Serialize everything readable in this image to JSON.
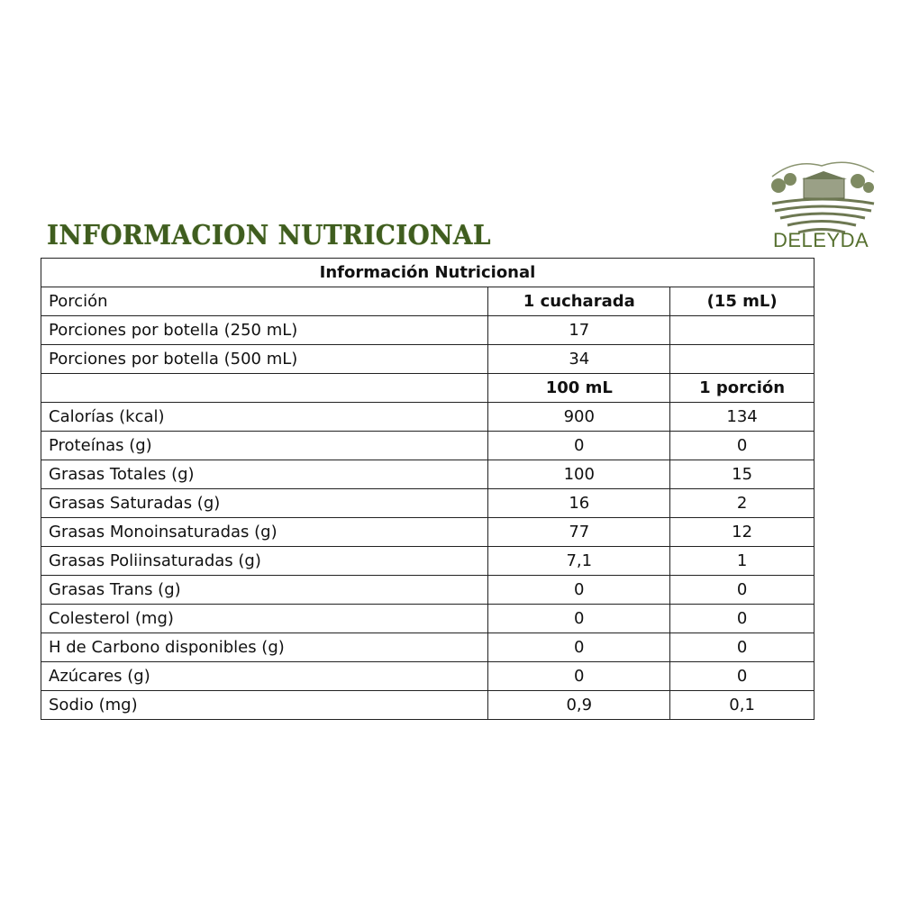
{
  "heading": "INFORMACION NUTRICIONAL",
  "brand": {
    "name": "DELEYDA",
    "color": "#56702f"
  },
  "colors": {
    "title": "#3f5d1f"
  },
  "table": {
    "caption": "Información Nutricional",
    "serving": {
      "label": "Porción",
      "amount": "1 cucharada",
      "volume": "(15 mL)"
    },
    "servings_per_bottle": [
      {
        "label": "Porciones por botella (250 mL)",
        "value": "17"
      },
      {
        "label": "Porciones por botella (500 mL)",
        "value": "34"
      }
    ],
    "columns": [
      "100 mL",
      "1 porción"
    ],
    "rows": [
      {
        "label": "Calorías (kcal)",
        "per100": "900",
        "perServing": "134"
      },
      {
        "label": "Proteínas (g)",
        "per100": "0",
        "perServing": "0"
      },
      {
        "label": "Grasas Totales (g)",
        "per100": "100",
        "perServing": "15"
      },
      {
        "label": "Grasas Saturadas (g)",
        "per100": "16",
        "perServing": "2"
      },
      {
        "label": "Grasas Monoinsaturadas (g)",
        "per100": "77",
        "perServing": "12"
      },
      {
        "label": "Grasas Poliinsaturadas (g)",
        "per100": "7,1",
        "perServing": "1"
      },
      {
        "label": "Grasas Trans (g)",
        "per100": "0",
        "perServing": "0"
      },
      {
        "label": "Colesterol (mg)",
        "per100": "0",
        "perServing": "0"
      },
      {
        "label": "H de Carbono disponibles (g)",
        "per100": "0",
        "perServing": "0"
      },
      {
        "label": "Azúcares (g)",
        "per100": "0",
        "perServing": "0"
      },
      {
        "label": "Sodio (mg)",
        "per100": "0,9",
        "perServing": "0,1"
      }
    ]
  }
}
